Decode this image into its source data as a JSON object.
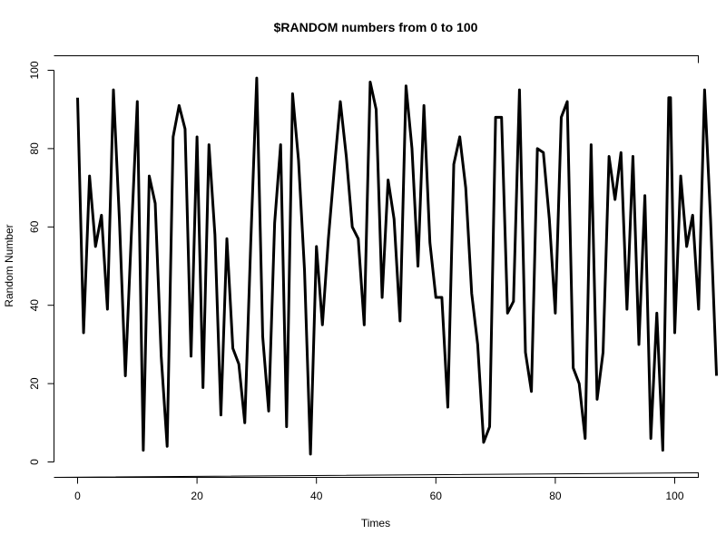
{
  "chart_data": {
    "type": "line",
    "title": "$RANDOM numbers from 0 to 100",
    "xlabel": "Times",
    "ylabel": "Random Number",
    "xlim": [
      0,
      104
    ],
    "ylim": [
      0,
      100
    ],
    "x_ticks": [
      0,
      20,
      40,
      60,
      80,
      100
    ],
    "y_ticks": [
      0,
      20,
      40,
      60,
      80,
      100
    ],
    "x_tick_labels": [
      "0",
      "20",
      "40",
      "60",
      "80",
      "100"
    ],
    "y_tick_labels": [
      "0",
      "20",
      "40",
      "60",
      "80",
      "100"
    ],
    "grid": false,
    "legend": "none",
    "line_color": "#000000",
    "series": [
      {
        "x": [
          0,
          1,
          2,
          3,
          4,
          5,
          6,
          7,
          8,
          9,
          10,
          11,
          12,
          13,
          14,
          15,
          16,
          17,
          18,
          19,
          20,
          21,
          22,
          23,
          24,
          25,
          26,
          27,
          28,
          29,
          30,
          31,
          32,
          33,
          34,
          35,
          36,
          37,
          38,
          39,
          40,
          41,
          42,
          43,
          44,
          45,
          46,
          47,
          48,
          49,
          50,
          51,
          52,
          53,
          54,
          55,
          56,
          57,
          58,
          59,
          60,
          61,
          62,
          63,
          64,
          65,
          66,
          67,
          68,
          69,
          70,
          71,
          72,
          73,
          74,
          75,
          76,
          77,
          78,
          79,
          80,
          81,
          82,
          83,
          84,
          85,
          86,
          87,
          88,
          89,
          90,
          91,
          92,
          93,
          94,
          95,
          96,
          97,
          98,
          99,
          99.3,
          100,
          101,
          102,
          103,
          104,
          105,
          106,
          107
        ],
        "values": [
          93,
          33,
          73,
          55,
          63,
          39,
          95,
          62,
          22,
          58,
          92,
          3,
          73,
          66,
          27,
          4,
          83,
          91,
          85,
          27,
          83,
          19,
          81,
          58,
          12,
          57,
          29,
          25,
          10,
          56,
          98,
          32,
          13,
          61,
          81,
          9,
          94,
          77,
          49,
          2,
          55,
          35,
          57,
          75,
          92,
          78,
          60,
          57,
          35,
          97,
          90,
          42,
          72,
          62,
          36,
          96,
          80,
          50,
          91,
          56,
          42,
          42,
          14,
          76,
          83,
          70,
          43,
          30,
          5,
          9,
          88,
          88,
          38,
          41,
          95,
          28,
          18,
          80,
          79,
          62,
          38,
          88,
          92,
          24,
          20,
          6,
          81,
          16,
          28,
          78,
          67,
          79,
          39,
          78,
          30,
          68,
          6,
          38,
          3,
          93,
          93,
          33,
          73,
          55,
          63,
          39,
          95,
          62,
          22
        ]
      }
    ]
  }
}
